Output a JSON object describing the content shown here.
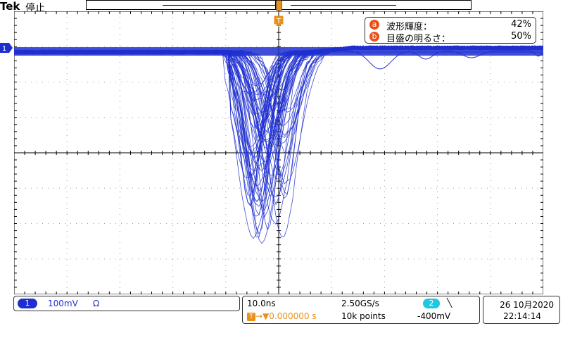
{
  "header": {
    "brand": "Tek",
    "status": "停止"
  },
  "info": {
    "rows": [
      {
        "key": "a",
        "label": "波形輝度：",
        "value": "42%"
      },
      {
        "key": "b",
        "label": "目盛の明るさ：",
        "value": "50%"
      }
    ]
  },
  "markers": {
    "channel": "1",
    "trigger": "T"
  },
  "channel": {
    "badge": "1",
    "scale": "100mV",
    "coupling": "Ω"
  },
  "acquisition": {
    "timebase": "10.0ns",
    "sample_rate": "2.50GS/s",
    "trigger_source": "2",
    "trigger_slope": "╲",
    "delay": "0.000000 s",
    "delay_arrow": "→▼",
    "record_length": "10k points",
    "trigger_level": "-400mV"
  },
  "datetime": {
    "date": "26 10月2020",
    "time": "22:14:14"
  },
  "colors": {
    "trace": "#1e2fd0",
    "trigger": "#e8901a",
    "badge_orange": "#e8501a",
    "ch2": "#1ec8e0"
  }
}
